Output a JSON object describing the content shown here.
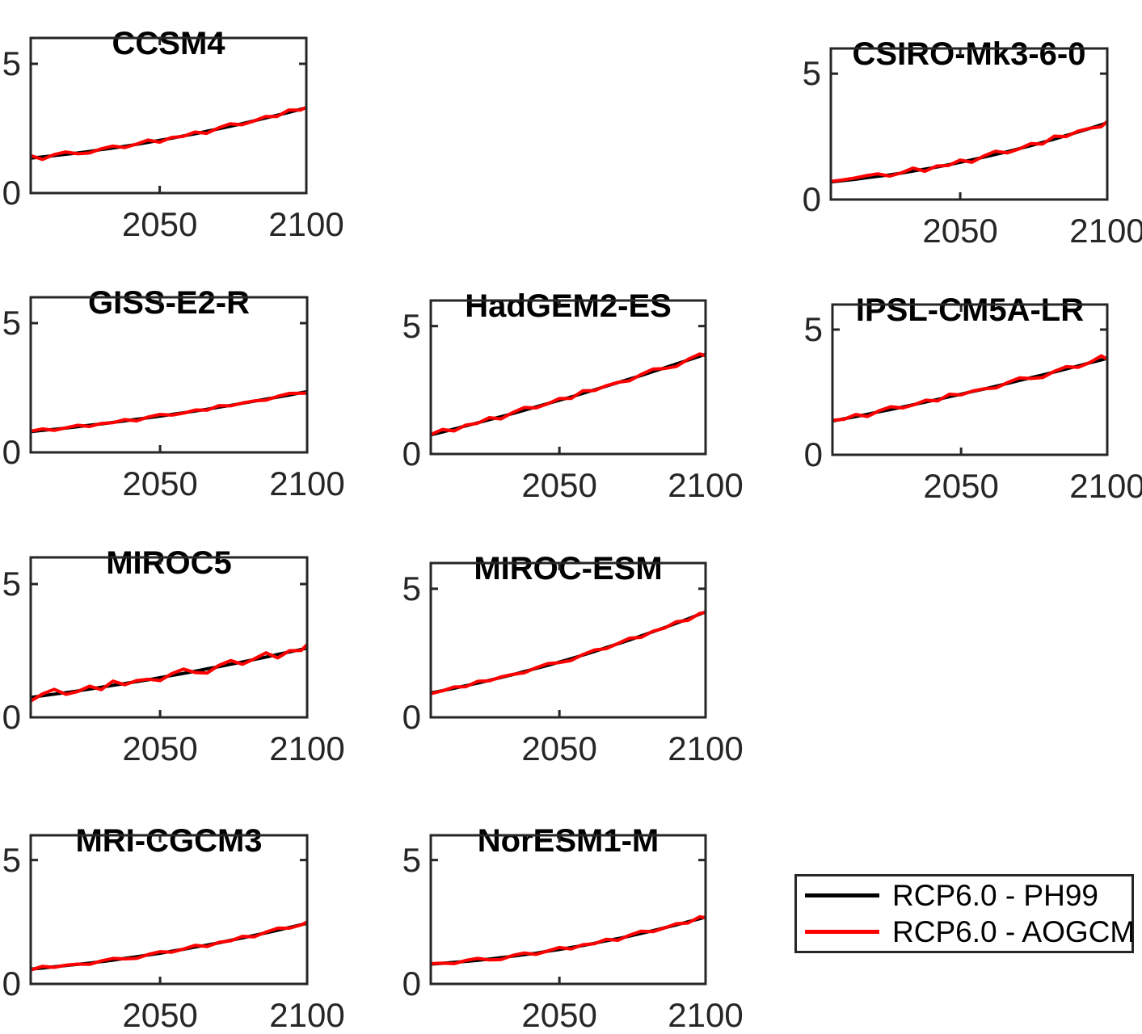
{
  "figure": {
    "background": "#ffffff",
    "frame_color": "#262626",
    "tick_label_color": "#262626",
    "title_color": "#000000",
    "xlim": [
      2006,
      2100
    ],
    "ylim": [
      0,
      6
    ],
    "xticks": [
      2050,
      2100
    ],
    "yticks": [
      0,
      5
    ],
    "grid": false,
    "line_width": 4
  },
  "legend": {
    "position": "bottom-right",
    "border_color": "#262626",
    "entries": [
      {
        "label": "RCP6.0 - PH99",
        "color": "#000000"
      },
      {
        "label": "RCP6.0 - AOGCM",
        "color": "#ff0000"
      }
    ]
  },
  "chart_data": [
    {
      "type": "line",
      "title": "CCSM4",
      "grid_position": {
        "row": 1,
        "col": 1
      },
      "xlabel": "",
      "ylabel": "",
      "x": [
        2006,
        2010,
        2014,
        2018,
        2022,
        2026,
        2030,
        2034,
        2038,
        2042,
        2046,
        2050,
        2054,
        2058,
        2062,
        2066,
        2070,
        2074,
        2078,
        2082,
        2086,
        2090,
        2094,
        2098,
        2100
      ],
      "series": [
        {
          "name": "RCP6.0 - PH99",
          "color": "#000000",
          "values": [
            1.35,
            1.4,
            1.45,
            1.5,
            1.55,
            1.61,
            1.68,
            1.74,
            1.81,
            1.88,
            1.96,
            2.04,
            2.12,
            2.21,
            2.29,
            2.39,
            2.48,
            2.58,
            2.68,
            2.79,
            2.9,
            3.01,
            3.12,
            3.24,
            3.3
          ]
        },
        {
          "name": "RCP6.0 - AOGCM",
          "color": "#ff0000",
          "values": [
            1.45,
            1.3,
            1.49,
            1.59,
            1.52,
            1.55,
            1.71,
            1.82,
            1.76,
            1.89,
            2.05,
            1.97,
            2.15,
            2.19,
            2.36,
            2.31,
            2.52,
            2.68,
            2.64,
            2.78,
            2.96,
            2.96,
            3.21,
            3.21,
            3.32
          ]
        }
      ]
    },
    {
      "type": "line",
      "title": "CSIRO-Mk3-6-0",
      "grid_position": {
        "row": 1,
        "col": 3
      },
      "xlabel": "",
      "ylabel": "",
      "x": [
        2006,
        2010,
        2014,
        2018,
        2022,
        2026,
        2030,
        2034,
        2038,
        2042,
        2046,
        2050,
        2054,
        2058,
        2062,
        2066,
        2070,
        2074,
        2078,
        2082,
        2086,
        2090,
        2094,
        2098,
        2100
      ],
      "series": [
        {
          "name": "RCP6.0 - PH99",
          "color": "#000000",
          "values": [
            0.7,
            0.75,
            0.8,
            0.86,
            0.92,
            0.98,
            1.05,
            1.13,
            1.21,
            1.29,
            1.38,
            1.48,
            1.58,
            1.68,
            1.79,
            1.9,
            2.02,
            2.14,
            2.27,
            2.4,
            2.54,
            2.68,
            2.82,
            2.97,
            3.05
          ]
        },
        {
          "name": "RCP6.0 - AOGCM",
          "color": "#ff0000",
          "values": [
            0.72,
            0.78,
            0.85,
            0.95,
            1.02,
            0.93,
            1.06,
            1.25,
            1.12,
            1.33,
            1.35,
            1.57,
            1.48,
            1.73,
            1.92,
            1.85,
            2.01,
            2.22,
            2.2,
            2.52,
            2.5,
            2.71,
            2.83,
            2.89,
            3.1
          ]
        }
      ]
    },
    {
      "type": "line",
      "title": "GISS-E2-R",
      "grid_position": {
        "row": 2,
        "col": 1
      },
      "xlabel": "",
      "ylabel": "",
      "x": [
        2006,
        2010,
        2014,
        2018,
        2022,
        2026,
        2030,
        2034,
        2038,
        2042,
        2046,
        2050,
        2054,
        2058,
        2062,
        2066,
        2070,
        2074,
        2078,
        2082,
        2086,
        2090,
        2094,
        2098,
        2100
      ],
      "series": [
        {
          "name": "RCP6.0 - PH99",
          "color": "#000000",
          "values": [
            0.8,
            0.85,
            0.89,
            0.94,
            0.99,
            1.05,
            1.1,
            1.16,
            1.22,
            1.28,
            1.34,
            1.4,
            1.47,
            1.53,
            1.6,
            1.67,
            1.75,
            1.82,
            1.9,
            1.98,
            2.06,
            2.14,
            2.22,
            2.31,
            2.35
          ]
        },
        {
          "name": "RCP6.0 - AOGCM",
          "color": "#ff0000",
          "values": [
            0.82,
            0.91,
            0.85,
            0.95,
            1.05,
            1.0,
            1.12,
            1.15,
            1.27,
            1.22,
            1.37,
            1.47,
            1.44,
            1.52,
            1.64,
            1.63,
            1.81,
            1.8,
            1.91,
            1.99,
            2.02,
            2.17,
            2.28,
            2.29,
            2.29
          ]
        }
      ]
    },
    {
      "type": "line",
      "title": "HadGEM2-ES",
      "grid_position": {
        "row": 2,
        "col": 2
      },
      "xlabel": "",
      "ylabel": "",
      "x": [
        2006,
        2010,
        2014,
        2018,
        2022,
        2026,
        2030,
        2034,
        2038,
        2042,
        2046,
        2050,
        2054,
        2058,
        2062,
        2066,
        2070,
        2074,
        2078,
        2082,
        2086,
        2090,
        2094,
        2098,
        2100
      ],
      "series": [
        {
          "name": "RCP6.0 - PH99",
          "color": "#000000",
          "values": [
            0.75,
            0.86,
            0.98,
            1.1,
            1.22,
            1.34,
            1.46,
            1.58,
            1.71,
            1.84,
            1.97,
            2.1,
            2.23,
            2.37,
            2.51,
            2.65,
            2.79,
            2.93,
            3.07,
            3.22,
            3.37,
            3.52,
            3.67,
            3.82,
            3.9
          ]
        },
        {
          "name": "RCP6.0 - AOGCM",
          "color": "#ff0000",
          "values": [
            0.76,
            0.96,
            0.9,
            1.13,
            1.2,
            1.42,
            1.37,
            1.62,
            1.82,
            1.8,
            1.96,
            2.17,
            2.17,
            2.47,
            2.48,
            2.67,
            2.8,
            2.86,
            3.11,
            3.32,
            3.34,
            3.42,
            3.7,
            3.91,
            3.84
          ]
        }
      ]
    },
    {
      "type": "line",
      "title": "IPSL-CM5A-LR",
      "grid_position": {
        "row": 2,
        "col": 3
      },
      "xlabel": "",
      "ylabel": "",
      "x": [
        2006,
        2010,
        2014,
        2018,
        2022,
        2026,
        2030,
        2034,
        2038,
        2042,
        2046,
        2050,
        2054,
        2058,
        2062,
        2066,
        2070,
        2074,
        2078,
        2082,
        2086,
        2090,
        2094,
        2098,
        2100
      ],
      "series": [
        {
          "name": "RCP6.0 - PH99",
          "color": "#000000",
          "values": [
            1.35,
            1.44,
            1.53,
            1.62,
            1.72,
            1.81,
            1.91,
            2.01,
            2.11,
            2.21,
            2.32,
            2.42,
            2.53,
            2.63,
            2.74,
            2.85,
            2.97,
            3.08,
            3.19,
            3.31,
            3.43,
            3.55,
            3.67,
            3.79,
            3.85
          ]
        },
        {
          "name": "RCP6.0 - AOGCM",
          "color": "#ff0000",
          "values": [
            1.38,
            1.42,
            1.61,
            1.53,
            1.76,
            1.92,
            1.87,
            2.0,
            2.18,
            2.15,
            2.42,
            2.39,
            2.55,
            2.64,
            2.67,
            2.89,
            3.07,
            3.05,
            3.09,
            3.34,
            3.52,
            3.49,
            3.68,
            3.95,
            3.82
          ]
        }
      ]
    },
    {
      "type": "line",
      "title": "MIROC5",
      "grid_position": {
        "row": 3,
        "col": 1
      },
      "xlabel": "",
      "ylabel": "",
      "x": [
        2006,
        2010,
        2014,
        2018,
        2022,
        2026,
        2030,
        2034,
        2038,
        2042,
        2046,
        2050,
        2054,
        2058,
        2062,
        2066,
        2070,
        2074,
        2078,
        2082,
        2086,
        2090,
        2094,
        2098,
        2100
      ],
      "series": [
        {
          "name": "RCP6.0 - PH99",
          "color": "#000000",
          "values": [
            0.75,
            0.81,
            0.87,
            0.93,
            0.99,
            1.06,
            1.13,
            1.2,
            1.27,
            1.34,
            1.41,
            1.49,
            1.57,
            1.65,
            1.73,
            1.82,
            1.9,
            1.99,
            2.08,
            2.17,
            2.26,
            2.36,
            2.45,
            2.55,
            2.6
          ]
        },
        {
          "name": "RCP6.0 - AOGCM",
          "color": "#ff0000",
          "values": [
            0.61,
            0.88,
            1.05,
            0.86,
            0.97,
            1.17,
            1.04,
            1.36,
            1.22,
            1.38,
            1.43,
            1.38,
            1.64,
            1.81,
            1.68,
            1.66,
            1.95,
            2.13,
            1.99,
            2.19,
            2.42,
            2.23,
            2.5,
            2.51,
            2.73
          ]
        }
      ]
    },
    {
      "type": "line",
      "title": "MIROC-ESM",
      "grid_position": {
        "row": 3,
        "col": 2
      },
      "xlabel": "",
      "ylabel": "",
      "x": [
        2006,
        2010,
        2014,
        2018,
        2022,
        2026,
        2030,
        2034,
        2038,
        2042,
        2046,
        2050,
        2054,
        2058,
        2062,
        2066,
        2070,
        2074,
        2078,
        2082,
        2086,
        2090,
        2094,
        2098,
        2100
      ],
      "series": [
        {
          "name": "RCP6.0 - PH99",
          "color": "#000000",
          "values": [
            0.95,
            1.04,
            1.13,
            1.23,
            1.33,
            1.44,
            1.55,
            1.66,
            1.78,
            1.9,
            2.02,
            2.15,
            2.28,
            2.42,
            2.56,
            2.71,
            2.86,
            3.01,
            3.17,
            3.33,
            3.49,
            3.66,
            3.83,
            4.01,
            4.1
          ]
        },
        {
          "name": "RCP6.0 - AOGCM",
          "color": "#ff0000",
          "values": [
            0.92,
            1.03,
            1.18,
            1.19,
            1.4,
            1.42,
            1.57,
            1.67,
            1.73,
            1.93,
            2.09,
            2.13,
            2.21,
            2.44,
            2.62,
            2.67,
            2.87,
            3.08,
            3.11,
            3.35,
            3.47,
            3.72,
            3.77,
            4.04,
            4.08
          ]
        }
      ]
    },
    {
      "type": "line",
      "title": "MRI-CGCM3",
      "grid_position": {
        "row": 4,
        "col": 1
      },
      "xlabel": "",
      "ylabel": "",
      "x": [
        2006,
        2010,
        2014,
        2018,
        2022,
        2026,
        2030,
        2034,
        2038,
        2042,
        2046,
        2050,
        2054,
        2058,
        2062,
        2066,
        2070,
        2074,
        2078,
        2082,
        2086,
        2090,
        2094,
        2098,
        2100
      ],
      "series": [
        {
          "name": "RCP6.0 - PH99",
          "color": "#000000",
          "values": [
            0.6,
            0.64,
            0.69,
            0.74,
            0.79,
            0.84,
            0.9,
            0.96,
            1.03,
            1.1,
            1.17,
            1.24,
            1.32,
            1.4,
            1.49,
            1.57,
            1.66,
            1.76,
            1.86,
            1.96,
            2.06,
            2.17,
            2.28,
            2.39,
            2.45
          ]
        },
        {
          "name": "RCP6.0 - AOGCM",
          "color": "#ff0000",
          "values": [
            0.56,
            0.71,
            0.67,
            0.76,
            0.8,
            0.79,
            0.93,
            1.03,
            1.01,
            1.03,
            1.19,
            1.3,
            1.28,
            1.41,
            1.56,
            1.51,
            1.68,
            1.74,
            1.92,
            1.9,
            2.09,
            2.25,
            2.25,
            2.38,
            2.5
          ]
        }
      ]
    },
    {
      "type": "line",
      "title": "NorESM1-M",
      "grid_position": {
        "row": 4,
        "col": 2
      },
      "xlabel": "",
      "ylabel": "",
      "x": [
        2006,
        2010,
        2014,
        2018,
        2022,
        2026,
        2030,
        2034,
        2038,
        2042,
        2046,
        2050,
        2054,
        2058,
        2062,
        2066,
        2070,
        2074,
        2078,
        2082,
        2086,
        2090,
        2094,
        2098,
        2100
      ],
      "series": [
        {
          "name": "RCP6.0 - PH99",
          "color": "#000000",
          "values": [
            0.8,
            0.83,
            0.87,
            0.91,
            0.95,
            1.0,
            1.06,
            1.12,
            1.18,
            1.24,
            1.32,
            1.39,
            1.47,
            1.55,
            1.64,
            1.74,
            1.83,
            1.93,
            2.04,
            2.15,
            2.27,
            2.38,
            2.51,
            2.63,
            2.7
          ]
        },
        {
          "name": "RCP6.0 - AOGCM",
          "color": "#ff0000",
          "values": [
            0.82,
            0.84,
            0.82,
            0.95,
            1.03,
            0.97,
            0.98,
            1.15,
            1.25,
            1.19,
            1.33,
            1.47,
            1.41,
            1.58,
            1.62,
            1.8,
            1.76,
            1.97,
            2.13,
            2.11,
            2.26,
            2.43,
            2.46,
            2.71,
            2.67
          ]
        }
      ]
    }
  ]
}
